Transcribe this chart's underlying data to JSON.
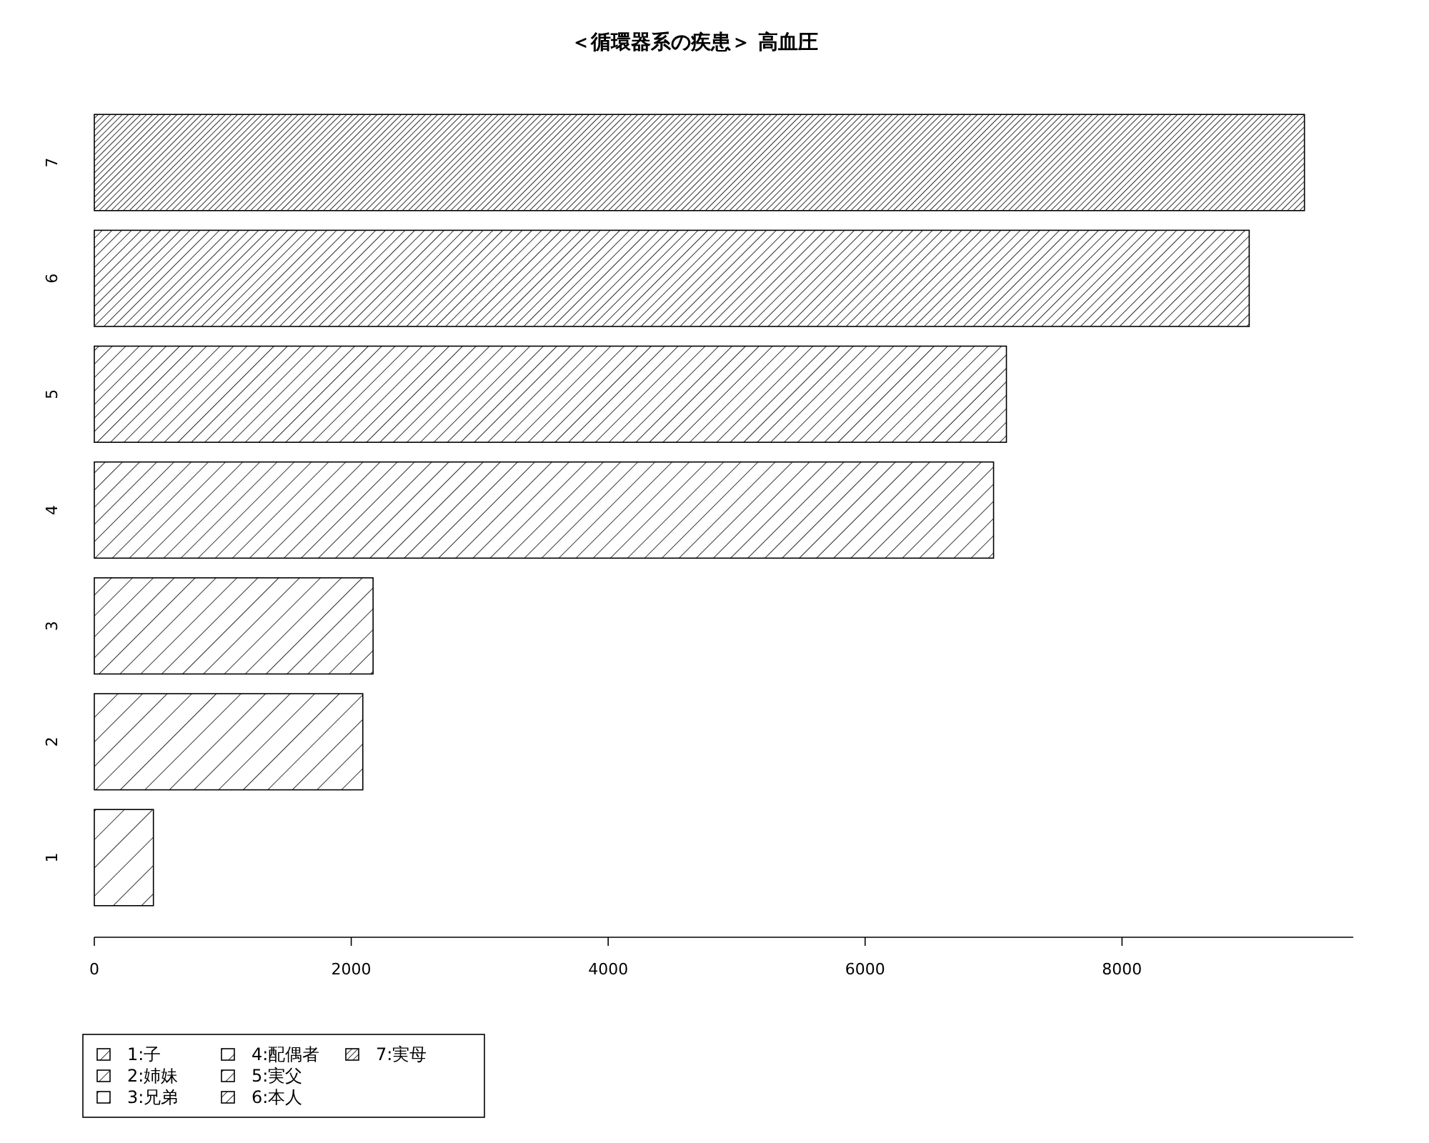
{
  "chart_data": {
    "type": "bar",
    "orientation": "horizontal",
    "stacked": true,
    "title": "＜循環器系の疾患＞ 高血圧",
    "categories": [
      "7",
      "6",
      "5",
      "4",
      "3",
      "2",
      "1"
    ],
    "series": [
      {
        "name": "1:子",
        "color": "#000000",
        "values": [
          null,
          null,
          null,
          null,
          null,
          null,
          460
        ]
      },
      {
        "name": "2:姉妹",
        "color": "#000000",
        "values": [
          null,
          null,
          null,
          null,
          null,
          2090,
          null
        ]
      },
      {
        "name": "3:兄弟",
        "color": "#000000",
        "values": [
          null,
          null,
          null,
          null,
          2170,
          null,
          null
        ]
      },
      {
        "name": "4:配偶者",
        "color": "#000000",
        "values": [
          null,
          null,
          null,
          7000,
          null,
          null,
          null
        ]
      },
      {
        "name": "5:実父",
        "color": "#000000",
        "values": [
          null,
          null,
          7100,
          null,
          null,
          null,
          null
        ]
      },
      {
        "name": "6:本人",
        "color": "#000000",
        "values": [
          null,
          8990,
          null,
          null,
          null,
          null,
          null
        ]
      },
      {
        "name": "7:実母",
        "color": "#000000",
        "values": [
          9420,
          null,
          null,
          null,
          null,
          null,
          null
        ]
      }
    ],
    "xlim": [
      0,
      9800
    ],
    "xticks": [
      0,
      2000,
      4000,
      6000,
      8000
    ],
    "grid": false,
    "legend": "bottom left"
  }
}
